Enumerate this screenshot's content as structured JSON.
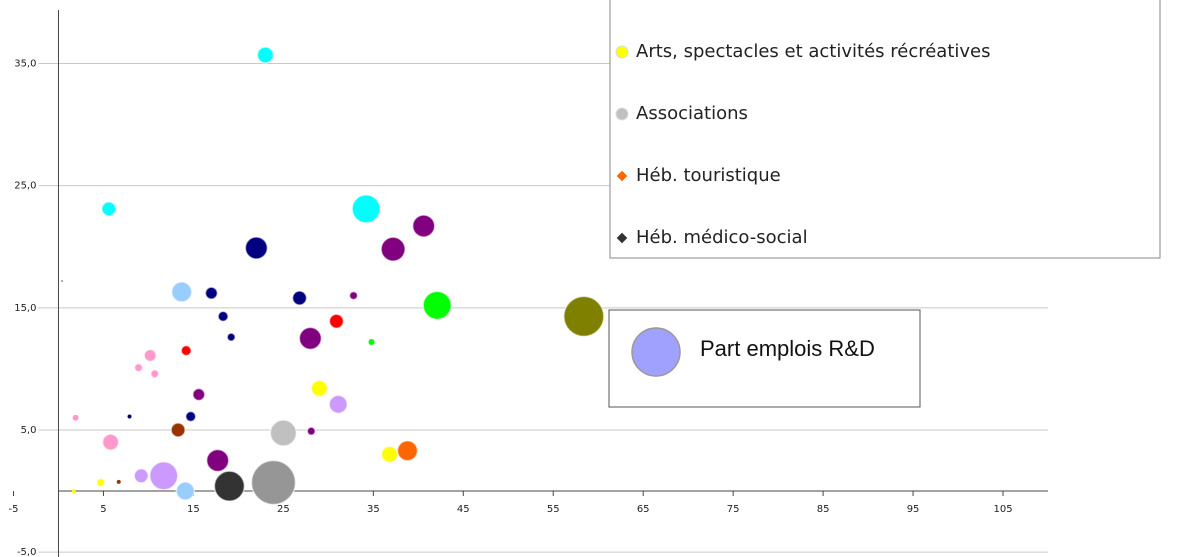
{
  "chart_data": {
    "type": "bubble",
    "xlim": [
      -6.5,
      110
    ],
    "ylim": [
      -5.4,
      40.2
    ],
    "xticks": [
      -5,
      5,
      15,
      25,
      35,
      45,
      55,
      65,
      75,
      85,
      95,
      105
    ],
    "yticks": [
      {
        "value": -5,
        "label": "-5,0"
      },
      {
        "value": 5,
        "label": "5,0"
      },
      {
        "value": 15,
        "label": "15,0"
      },
      {
        "value": 25,
        "label": "25,0"
      },
      {
        "value": 35,
        "label": "35,0"
      }
    ],
    "grid": true,
    "x": [
      23,
      5.6,
      34.2,
      40.6,
      37.2,
      22,
      13.7,
      17,
      26.8,
      32.8,
      42.1,
      58.4,
      18.3,
      30.9,
      28,
      19.2,
      34.8,
      14.2,
      10.2,
      8.9,
      10.7,
      29,
      15.6,
      31.1,
      14.7,
      7.9,
      1.9,
      13.3,
      25,
      28.1,
      5.8,
      36.8,
      38.8,
      17.7,
      9.2,
      11.7,
      4.7,
      6.7,
      14.1,
      19,
      23.9,
      1.7,
      0.4
    ],
    "y": [
      35.7,
      23.1,
      23.1,
      21.7,
      19.8,
      19.9,
      16.3,
      16.2,
      15.8,
      16,
      15.2,
      14.3,
      14.3,
      13.9,
      12.5,
      12.6,
      12.2,
      11.5,
      11.1,
      10.1,
      9.6,
      8.4,
      7.9,
      7.1,
      6.1,
      6.1,
      6,
      5,
      4.75,
      4.9,
      4,
      3,
      3.3,
      2.5,
      1.25,
      1.25,
      0.7,
      0.75,
      0,
      0.4,
      0.7,
      0,
      17.2
    ],
    "size": [
      8,
      7,
      14,
      11,
      12,
      11,
      10,
      6,
      7,
      4,
      14,
      20,
      5,
      7,
      11,
      4,
      3,
      5,
      6,
      4,
      4,
      8,
      6,
      9,
      5,
      2,
      3,
      7,
      13,
      4,
      8,
      8,
      10,
      11,
      7,
      14,
      4,
      2,
      9,
      15,
      22,
      2,
      1
    ],
    "colors": [
      "#00ffff",
      "#00ffff",
      "#00ffff",
      "#800080",
      "#800080",
      "#000080",
      "#99ccff",
      "#000080",
      "#000080",
      "#800080",
      "#00ff00",
      "#808000",
      "#000080",
      "#ff0000",
      "#800080",
      "#000080",
      "#00ff00",
      "#ff0000",
      "#ff99cc",
      "#ff99cc",
      "#ff99cc",
      "#ffff00",
      "#800080",
      "#cc99ff",
      "#000080",
      "#000080",
      "#ff99cc",
      "#993300",
      "#c0c0c0",
      "#800080",
      "#ff99cc",
      "#ffff00",
      "#ff6600",
      "#800080",
      "#cc99ff",
      "#cc99ff",
      "#ffff00",
      "#993300",
      "#99ccff",
      "#333333",
      "#969696",
      "#ffff00",
      "#969696"
    ],
    "legend": [
      {
        "name": "Arts, spectacles et activités récréatives",
        "color": "#ffff00",
        "shape": "circle"
      },
      {
        "name": "Associations",
        "color": "#c0c0c0",
        "shape": "circle"
      },
      {
        "name": "Héb. touristique",
        "color": "#ff6600",
        "shape": "diamond"
      },
      {
        "name": "Héb. médico-social",
        "color": "#333333",
        "shape": "diamond"
      }
    ],
    "size_legend": {
      "name": "Part emplois R&D",
      "color": "#a0a0ff"
    }
  }
}
